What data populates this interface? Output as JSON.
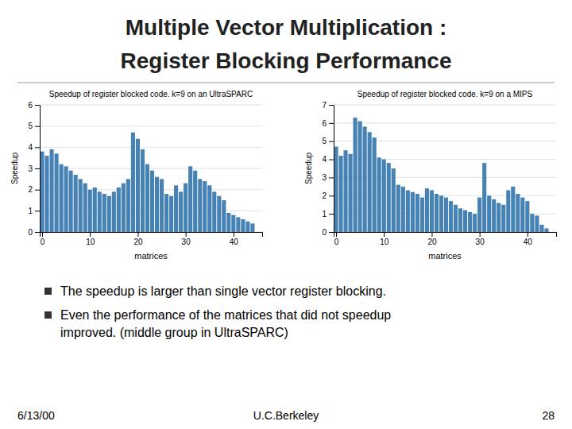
{
  "title": [
    "Multiple Vector Multiplication :",
    "Register Blocking Performance"
  ],
  "chart_data": [
    {
      "type": "bar",
      "title": "Speedup of register blocked code. k=9 on an UltraSPARC",
      "x_label": "matrices",
      "y_label": "Speedup",
      "values": [
        3.8,
        3.6,
        3.9,
        3.7,
        3.2,
        3.1,
        2.9,
        2.7,
        2.5,
        2.3,
        2.0,
        2.1,
        1.9,
        1.8,
        1.7,
        1.9,
        2.1,
        2.3,
        2.5,
        4.7,
        4.4,
        3.9,
        3.2,
        2.9,
        2.6,
        2.5,
        1.8,
        1.7,
        2.2,
        1.9,
        2.3,
        3.1,
        2.9,
        2.5,
        2.4,
        2.2,
        1.9,
        1.7,
        1.5,
        0.9,
        0.8,
        0.7,
        0.6,
        0.5,
        0.4
      ],
      "xlim": [
        -0.5,
        46
      ],
      "xticks": [
        0,
        10,
        20,
        30,
        40
      ],
      "ylim": [
        0,
        6
      ],
      "yticks": [
        0,
        1,
        2,
        3,
        4,
        5,
        6
      ],
      "grid": true
    },
    {
      "type": "bar",
      "title": "Speedup of register blocked code. k=9 on a MIPS",
      "x_label": "matrices",
      "y_label": "Speedup",
      "values": [
        4.7,
        4.2,
        4.5,
        4.3,
        6.3,
        6.1,
        5.8,
        5.5,
        5.2,
        4.1,
        4.0,
        3.8,
        3.5,
        2.6,
        2.5,
        2.3,
        2.2,
        2.1,
        1.9,
        2.4,
        2.3,
        2.1,
        2.0,
        1.9,
        1.7,
        1.5,
        1.3,
        1.2,
        1.1,
        1.0,
        1.9,
        3.8,
        2.0,
        1.8,
        1.6,
        1.5,
        2.3,
        2.5,
        2.1,
        1.9,
        1.7,
        1.0,
        0.9,
        0.4,
        0.2
      ],
      "xlim": [
        -0.5,
        46
      ],
      "xticks": [
        0,
        10,
        20,
        30,
        40
      ],
      "ylim": [
        0,
        7
      ],
      "yticks": [
        0,
        1,
        2,
        3,
        4,
        5,
        6,
        7
      ],
      "grid": true
    }
  ],
  "bullets": [
    "The speedup is larger than single vector register blocking.",
    "Even the performance of the matrices that did not speedup",
    "improved. (middle group in UltraSPARC)"
  ],
  "footer": [
    "6/13/00",
    "U.C.Berkeley",
    "28"
  ]
}
